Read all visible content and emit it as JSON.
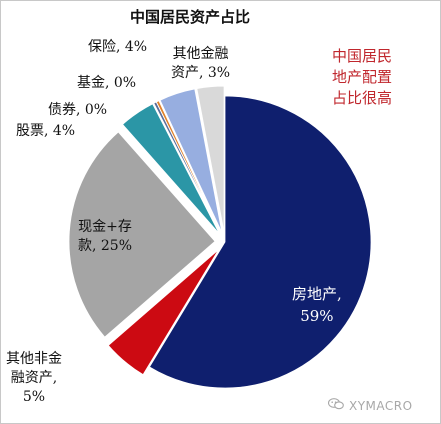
{
  "chart_data": {
    "type": "pie",
    "title": "中国居民资产占比",
    "slices": [
      {
        "label": "房地产",
        "value": 59,
        "color": "#0f1f6e",
        "exploded": false
      },
      {
        "label": "其他非金融资产",
        "value": 5,
        "color": "#cc0a12",
        "exploded": true
      },
      {
        "label": "现金+存款",
        "value": 25,
        "color": "#a5a5a5",
        "exploded": true
      },
      {
        "label": "股票",
        "value": 4,
        "color": "#2b96a6",
        "exploded": true
      },
      {
        "label": "债券",
        "value": 0.3,
        "color": "#5a6d9a",
        "exploded": true
      },
      {
        "label": "基金",
        "value": 0.3,
        "color": "#e0822c",
        "exploded": true
      },
      {
        "label": "保险",
        "value": 4,
        "color": "#97aee0",
        "exploded": true
      },
      {
        "label": "其他金融资产",
        "value": 3,
        "color": "#d9d9d9",
        "exploded": true
      }
    ],
    "start_angle_deg": 0,
    "direction": "clockwise"
  },
  "labels": {
    "real_estate": [
      "房地产,",
      "59%"
    ],
    "other_nonfin": [
      "其他非金",
      "融资产,",
      "5%"
    ],
    "cash": [
      "现金+存",
      "款, 25%"
    ],
    "stocks": [
      "股票, 4%"
    ],
    "bonds": [
      "债券, 0%"
    ],
    "funds": [
      "基金, 0%"
    ],
    "insurance": [
      "保险, 4%"
    ],
    "other_fin": [
      "其他金融",
      "资产, 3%"
    ]
  },
  "annotation": [
    "中国居民",
    "地产配置",
    "占比很高"
  ],
  "watermark": {
    "icon": "wechat-icon",
    "text": "XYMACRO"
  }
}
